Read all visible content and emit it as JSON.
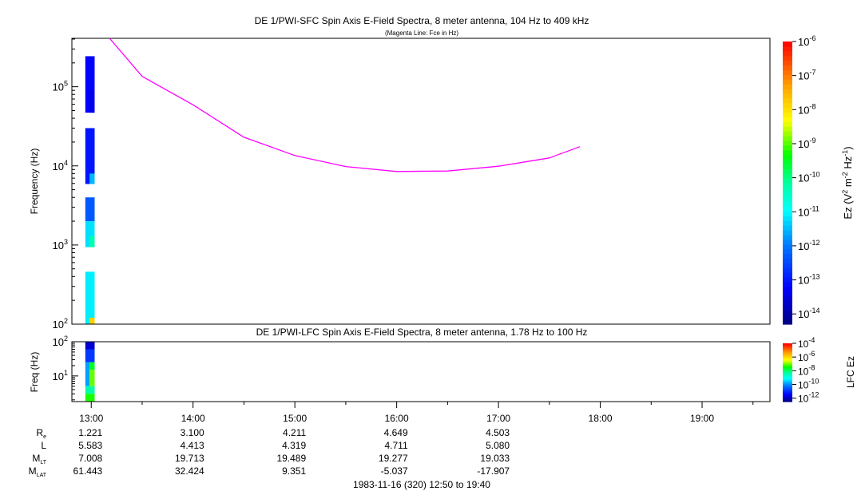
{
  "colors": {
    "fce_line": "#ff00ff",
    "frame": "#000000",
    "background": "#ffffff"
  },
  "chart_data": [
    {
      "type": "heatmap",
      "title": "DE 1/PWI-SFC  Spin Axis E-Field Spectra, 8 meter antenna, 104 Hz to 409 kHz",
      "subtitle": "(Magenta Line: Fce in Hz)",
      "ylabel": "Frequency (Hz)",
      "yscale": "log",
      "ylim": [
        100,
        409000
      ],
      "y_ticks": [
        {
          "v": 100,
          "label": "10",
          "exp": "2"
        },
        {
          "v": 1000,
          "label": "10",
          "exp": "3"
        },
        {
          "v": 10000,
          "label": "10",
          "exp": "4"
        },
        {
          "v": 100000,
          "label": "10",
          "exp": "5"
        }
      ],
      "colorbar": {
        "label_main": "Ez (V",
        "label_sup1": "2",
        "label_mid": " m",
        "label_sup2": "-2",
        "label_mid2": " Hz",
        "label_sup3": "-1",
        "label_end": ")",
        "scale": "log",
        "range_exp": [
          -14.3,
          -6
        ],
        "ticks": [
          "-6",
          "-7",
          "-8",
          "-9",
          "-10",
          "-11",
          "-12",
          "-13",
          "-14"
        ]
      },
      "cells": [
        {
          "t0": "12:56.5",
          "t1": "13:02",
          "f0": 47000,
          "f1": 243000,
          "ez_exp": -13.2
        },
        {
          "t0": "12:59",
          "t1": "13:02",
          "f0": 47000,
          "f1": 90000,
          "ez_exp": -13.4
        },
        {
          "t0": "12:56.5",
          "t1": "13:02",
          "f0": 5900,
          "f1": 30000,
          "ez_exp": -13.0
        },
        {
          "t0": "12:59",
          "t1": "13:02",
          "f0": 5900,
          "f1": 8000,
          "ez_exp": -11.5
        },
        {
          "t0": "12:56.5",
          "t1": "13:02",
          "f0": 2000,
          "f1": 4000,
          "ez_exp": -12.3
        },
        {
          "t0": "12:56.5",
          "t1": "13:02",
          "f0": 940,
          "f1": 2000,
          "ez_exp": -11.2
        },
        {
          "t0": "12:59",
          "t1": "13:02",
          "f0": 940,
          "f1": 1300,
          "ez_exp": -10.3
        },
        {
          "t0": "12:56.5",
          "t1": "13:02",
          "f0": 100,
          "f1": 460,
          "ez_exp": -11.1
        },
        {
          "t0": "12:59",
          "t1": "13:02",
          "f0": 100,
          "f1": 120,
          "ez_exp": -7.8
        }
      ],
      "fce_line": {
        "t": [
          "13:10.8",
          "13:30",
          "14:00",
          "14:30",
          "15:00",
          "15:30",
          "16:00",
          "16:30",
          "17:00",
          "17:30",
          "17:48"
        ],
        "hz": [
          409000,
          135000,
          59000,
          23000,
          13500,
          9800,
          8500,
          8600,
          9900,
          12600,
          17500
        ]
      }
    },
    {
      "type": "heatmap",
      "title": "DE 1/PWI-LFC  Spin Axis E-Field Spectra, 8 meter antenna, 1.78 Hz to 100 Hz",
      "ylabel": "Freq (Hz)",
      "yscale": "log",
      "ylim": [
        1.78,
        100
      ],
      "y_ticks": [
        {
          "v": 10,
          "label": "10",
          "exp": "1"
        },
        {
          "v": 100,
          "label": "10",
          "exp": "2"
        }
      ],
      "colorbar": {
        "label": "LFC Ez",
        "scale": "log",
        "range_exp": [
          -12.5,
          -4
        ],
        "ticks": [
          "-4",
          "-6",
          "-8",
          "-10",
          "-12"
        ]
      },
      "cells": [
        {
          "t0": "12:56.5",
          "t1": "13:02",
          "f0": 60,
          "f1": 100,
          "ez_exp": -11.8
        },
        {
          "t0": "12:56.5",
          "t1": "13:02",
          "f0": 25,
          "f1": 60,
          "ez_exp": -10.8
        },
        {
          "t0": "12:56.5",
          "t1": "12:59",
          "f0": 5,
          "f1": 25,
          "ez_exp": -9.8
        },
        {
          "t0": "12:59",
          "t1": "13:02",
          "f0": 15,
          "f1": 25,
          "ez_exp": -7.6
        },
        {
          "t0": "12:59",
          "t1": "13:02",
          "f0": 5,
          "f1": 15,
          "ez_exp": -7.0
        },
        {
          "t0": "12:56.5",
          "t1": "13:02",
          "f0": 3,
          "f1": 5,
          "ez_exp": -8.3
        },
        {
          "t0": "12:56.5",
          "t1": "13:02",
          "f0": 1.78,
          "f1": 3,
          "ez_exp": -7.3
        }
      ]
    }
  ],
  "x_axis": {
    "range": [
      "12:50",
      "19:40"
    ],
    "tick_labels": [
      "13:00",
      "14:00",
      "15:00",
      "16:00",
      "17:00",
      "18:00",
      "19:00"
    ]
  },
  "ephemeris": {
    "rows": [
      {
        "label": "R",
        "sub": "e",
        "values": [
          "1.221",
          "3.100",
          "4.211",
          "4.649",
          "4.503"
        ]
      },
      {
        "label": "L",
        "sub": "",
        "values": [
          "5.583",
          "4.413",
          "4.319",
          "4.711",
          "5.080"
        ]
      },
      {
        "label": "M",
        "sub": "LT",
        "values": [
          "7.008",
          "19.713",
          "19.489",
          "19.277",
          "19.033"
        ]
      },
      {
        "label": "M",
        "sub": "LAT",
        "values": [
          "61.443",
          "32.424",
          "9.351",
          "-5.037",
          "-17.907"
        ]
      }
    ]
  },
  "footer": "1983-11-16 (320) 12:50 to 19:40"
}
